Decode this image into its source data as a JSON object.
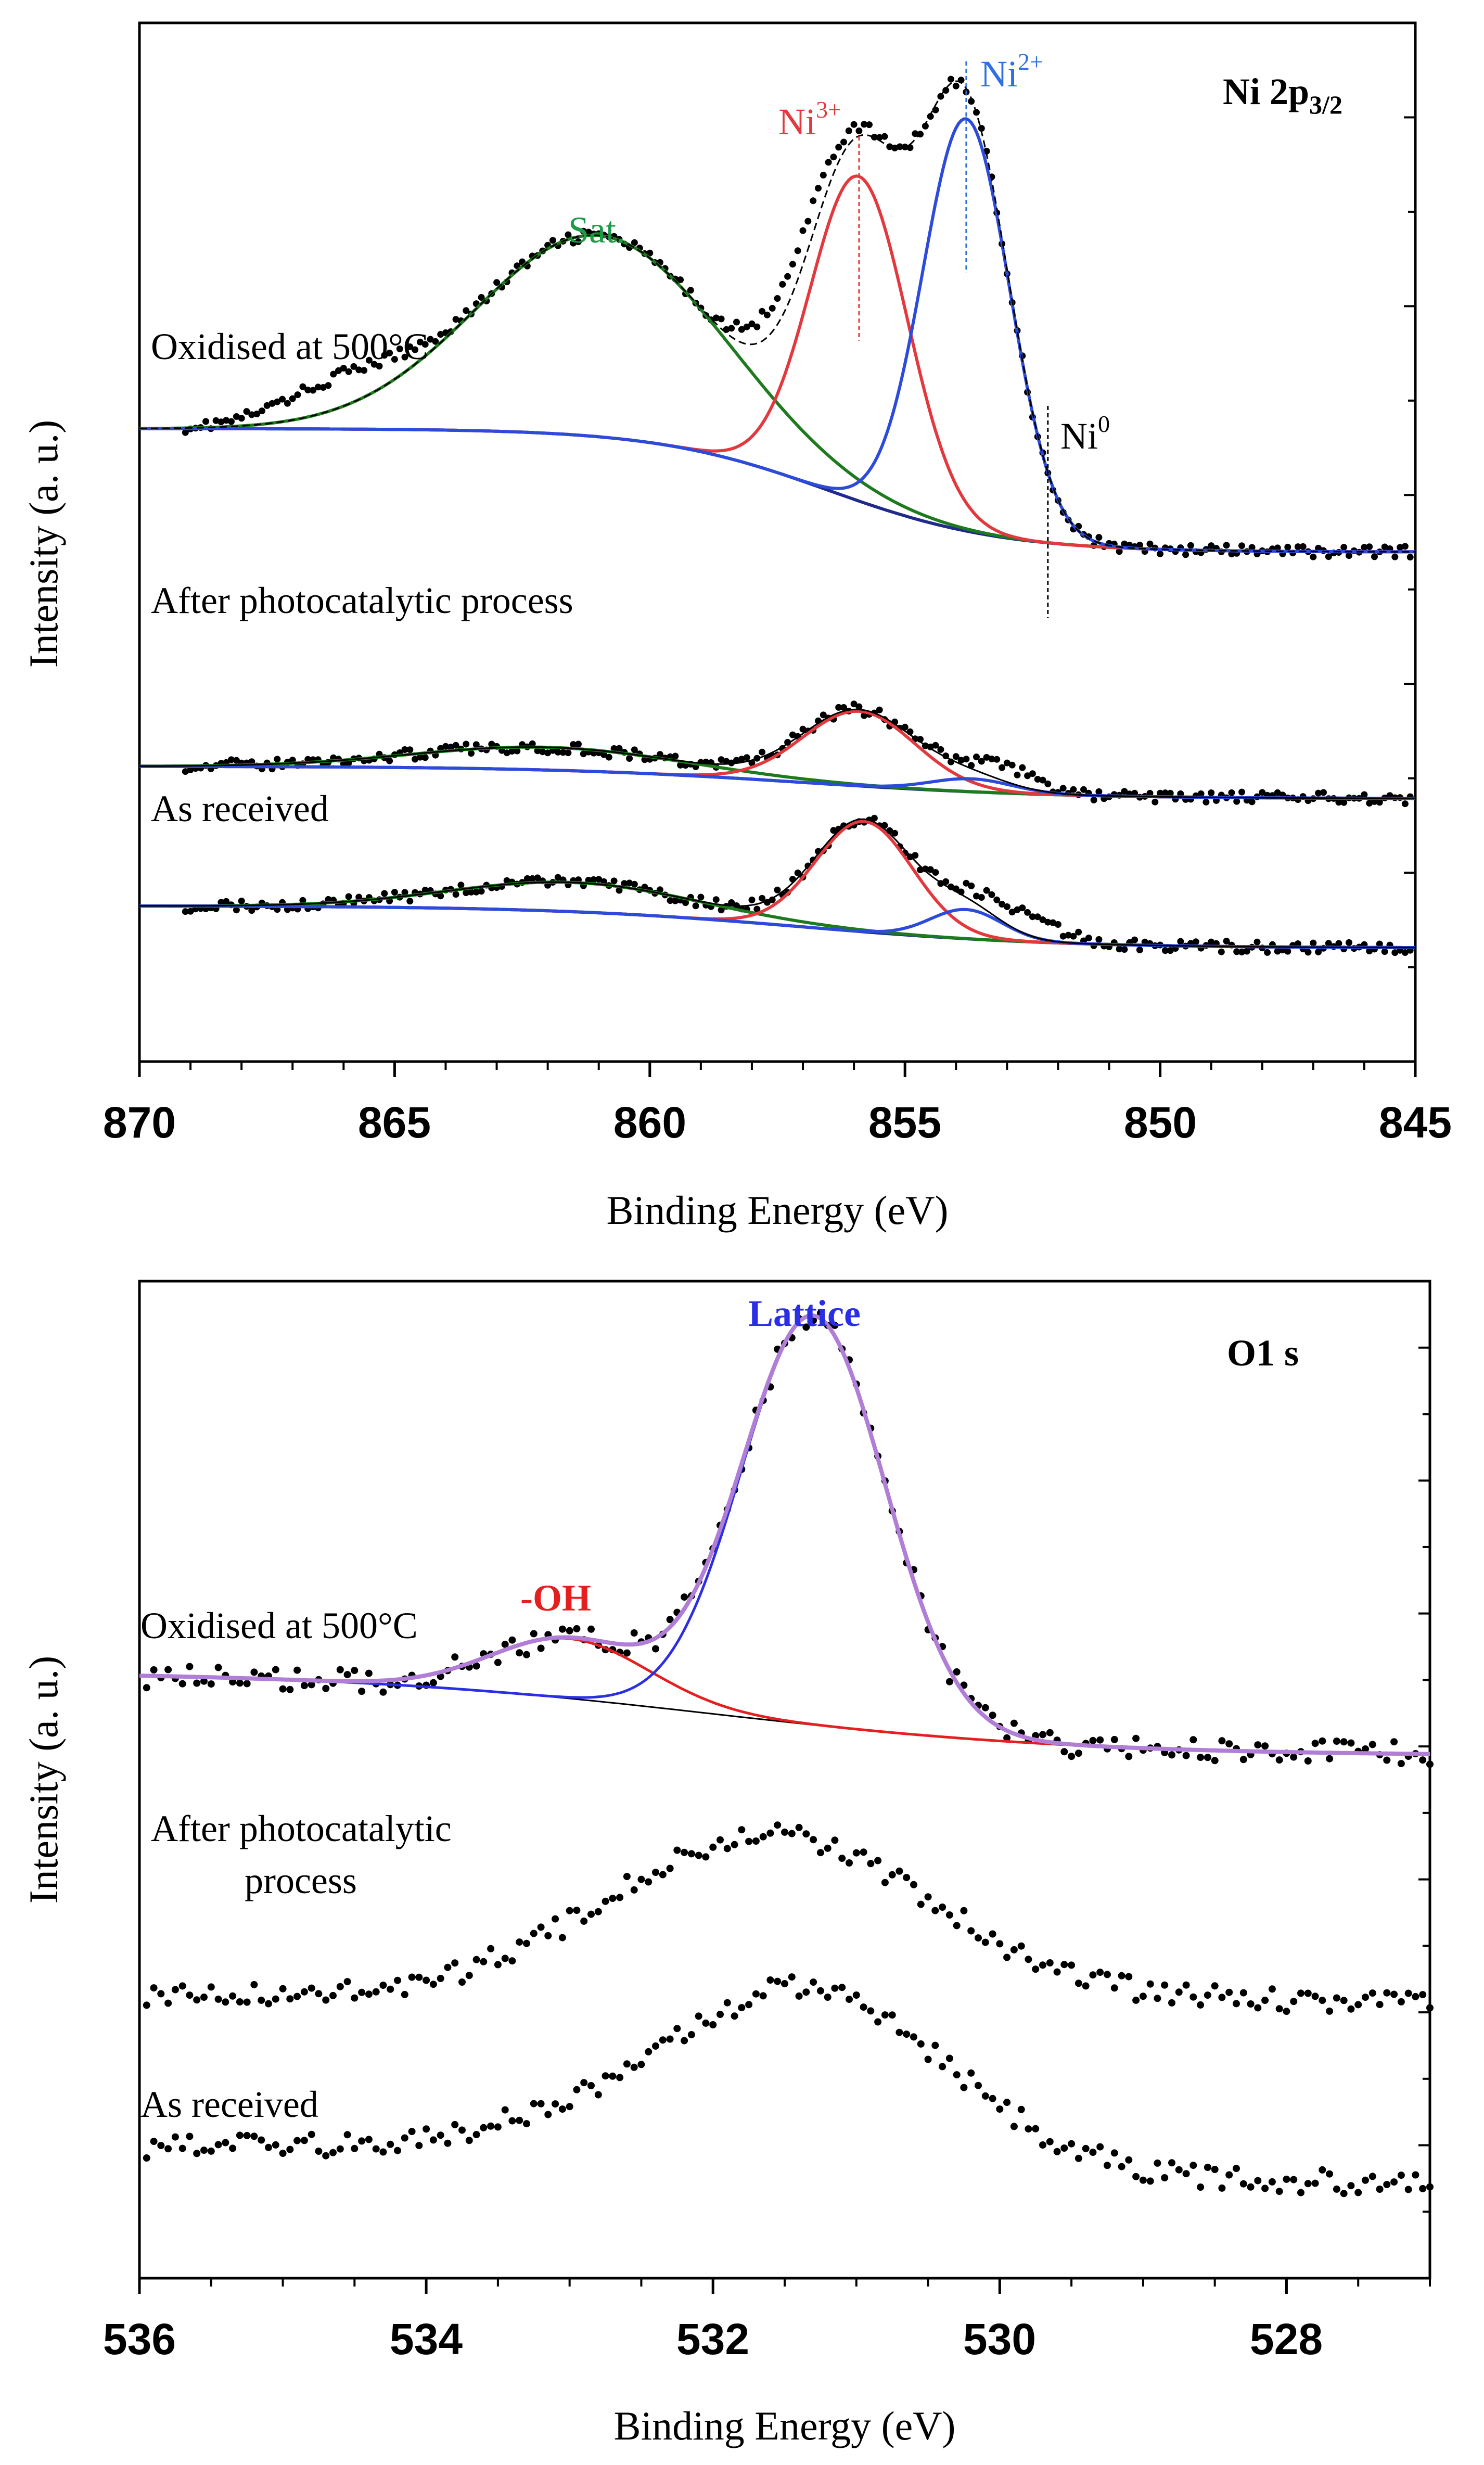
{
  "chart_data": [
    {
      "type": "line",
      "panel": "top",
      "title": "Ni 2p3/2",
      "title_main": "Ni 2p",
      "title_sub": "3/2",
      "xlabel": "Binding Energy (eV)",
      "ylabel": "Intensity (a. u.)",
      "xlim": [
        870,
        845
      ],
      "xticks": [
        "870",
        "865",
        "860",
        "855",
        "850",
        "845"
      ],
      "ylim": [
        0,
        3.2
      ],
      "curve_labels": {
        "oxidised": "Oxidised at 500°C",
        "photo": "After photocatalytic process",
        "received": "As received"
      },
      "peak_labels": {
        "sat": "Sat.",
        "ni3_base": "Ni",
        "ni3_sup": "3+",
        "ni2_base": "Ni",
        "ni2_sup": "2+",
        "ni0_base": "Ni",
        "ni0_sup": "0"
      },
      "markers": {
        "ni3": 855.9,
        "ni2": 853.8,
        "ni0": 852.2
      },
      "series": [
        {
          "name": "Oxidised at 500°C",
          "offset": 1.55,
          "bg": {
            "left": 0.4,
            "right": 0.02,
            "center": 856.5,
            "width": 1.7,
            "slope": 0.0
          },
          "fit_peaks": [
            {
              "name": "Sat.",
              "center": 861.0,
              "height": 0.62,
              "sigma": 2.4
            },
            {
              "name": "Ni3+",
              "center": 855.9,
              "height": 1.0,
              "sigma": 0.95
            },
            {
              "name": "Ni2+",
              "center": 853.8,
              "height": 1.27,
              "sigma": 0.85
            }
          ],
          "extra_data_peaks": [
            {
              "center": 866.0,
              "height": 0.1,
              "sigma": 1.2
            },
            {
              "center": 857.2,
              "height": 0.1,
              "sigma": 0.8
            }
          ],
          "data_points": "every 0.1 eV, 870–845"
        },
        {
          "name": "After photocatalytic process",
          "offset": 0.85,
          "bg": {
            "left": 0.06,
            "right": -0.04,
            "center": 857.0,
            "width": 2.5,
            "slope": 0.002
          },
          "fit_peaks": [
            {
              "name": "Sat.",
              "center": 862.0,
              "height": 0.07,
              "sigma": 2.6
            },
            {
              "name": "Ni3+",
              "center": 855.9,
              "height": 0.23,
              "sigma": 1.1
            },
            {
              "name": "Ni2+",
              "center": 853.7,
              "height": 0.04,
              "sigma": 0.8
            }
          ],
          "extra_data_peaks": [
            {
              "center": 853.0,
              "height": 0.05,
              "sigma": 0.6
            }
          ],
          "data_points": "every 0.1 eV, 870–845"
        },
        {
          "name": "As received",
          "offset": 0.38,
          "bg": {
            "left": 0.1,
            "right": -0.03,
            "center": 857.0,
            "width": 2.5,
            "slope": 0.002
          },
          "fit_peaks": [
            {
              "name": "Sat.",
              "center": 861.5,
              "height": 0.09,
              "sigma": 2.4
            },
            {
              "name": "Ni3+",
              "center": 855.8,
              "height": 0.34,
              "sigma": 0.95
            },
            {
              "name": "Ni2+",
              "center": 853.8,
              "height": 0.09,
              "sigma": 0.7
            }
          ],
          "extra_data_peaks": [
            {
              "center": 852.8,
              "height": 0.06,
              "sigma": 0.8
            }
          ],
          "data_points": "every 0.1 eV, 870–845"
        }
      ]
    },
    {
      "type": "line",
      "panel": "bottom",
      "title": "O1 s",
      "xlabel": "Binding Energy (eV)",
      "ylabel": "Intensity (a. u.)",
      "xlim": [
        536,
        527
      ],
      "xticks": [
        "536",
        "534",
        "532",
        "530",
        "528"
      ],
      "ylim": [
        0,
        5.0
      ],
      "curve_labels": {
        "oxidised": "Oxidised at 500°C",
        "photo_line1": "After photocatalytic",
        "photo_line2": "process",
        "received": "As received"
      },
      "peak_labels": {
        "oh": "-OH",
        "lattice": "Lattice"
      },
      "series": [
        {
          "name": "Oxidised at 500°C",
          "offset": 2.62,
          "bg": {
            "left": 0.42,
            "right": 0.0,
            "center": 532.0,
            "width": 1.3
          },
          "fit_peaks": [
            {
              "name": "-OH",
              "center": 533.0,
              "height": 0.3,
              "sigma": 0.55
            },
            {
              "name": "Lattice",
              "center": 531.3,
              "height": 2.05,
              "sigma": 0.5
            }
          ],
          "data_points": "every 0.05 eV, 536–527"
        },
        {
          "name": "After photocatalytic process",
          "offset": 1.43,
          "bg": {
            "left": 0.0,
            "right": -0.04,
            "center": 531.5,
            "width": 1.4
          },
          "peaks": [
            {
              "center": 531.6,
              "height": 0.82,
              "sigma": 1.1
            }
          ],
          "data_points": "every 0.05 eV, 536–527"
        },
        {
          "name": "As received",
          "offset": 0.57,
          "bg": {
            "left": 0.1,
            "right": -0.1,
            "center": 531.5,
            "width": 1.4
          },
          "peaks": [
            {
              "center": 531.3,
              "height": 0.88,
              "sigma": 0.95
            },
            {
              "center": 533.0,
              "height": 0.1,
              "sigma": 0.9
            }
          ],
          "data_points": "every 0.05 eV, 536–527"
        }
      ]
    }
  ],
  "colors": {
    "sat_fit": "#1d7a1d",
    "ni3_fit": "#e3383d",
    "ni2_fit": "#2c4bdb",
    "bg_line": "#1f2a8a",
    "envelope": "#000000",
    "oh_fit": "#e51f1f",
    "lattice_fit": "#2a2ee6",
    "o_envelope": "#b07ed6",
    "data_points": "#000000",
    "sat_label": "#1d9a4a",
    "ni3_label": "#e3383d",
    "ni2_label": "#2f6fe0",
    "oh_label": "#e51f1f",
    "lattice_label": "#2a2ee6"
  }
}
